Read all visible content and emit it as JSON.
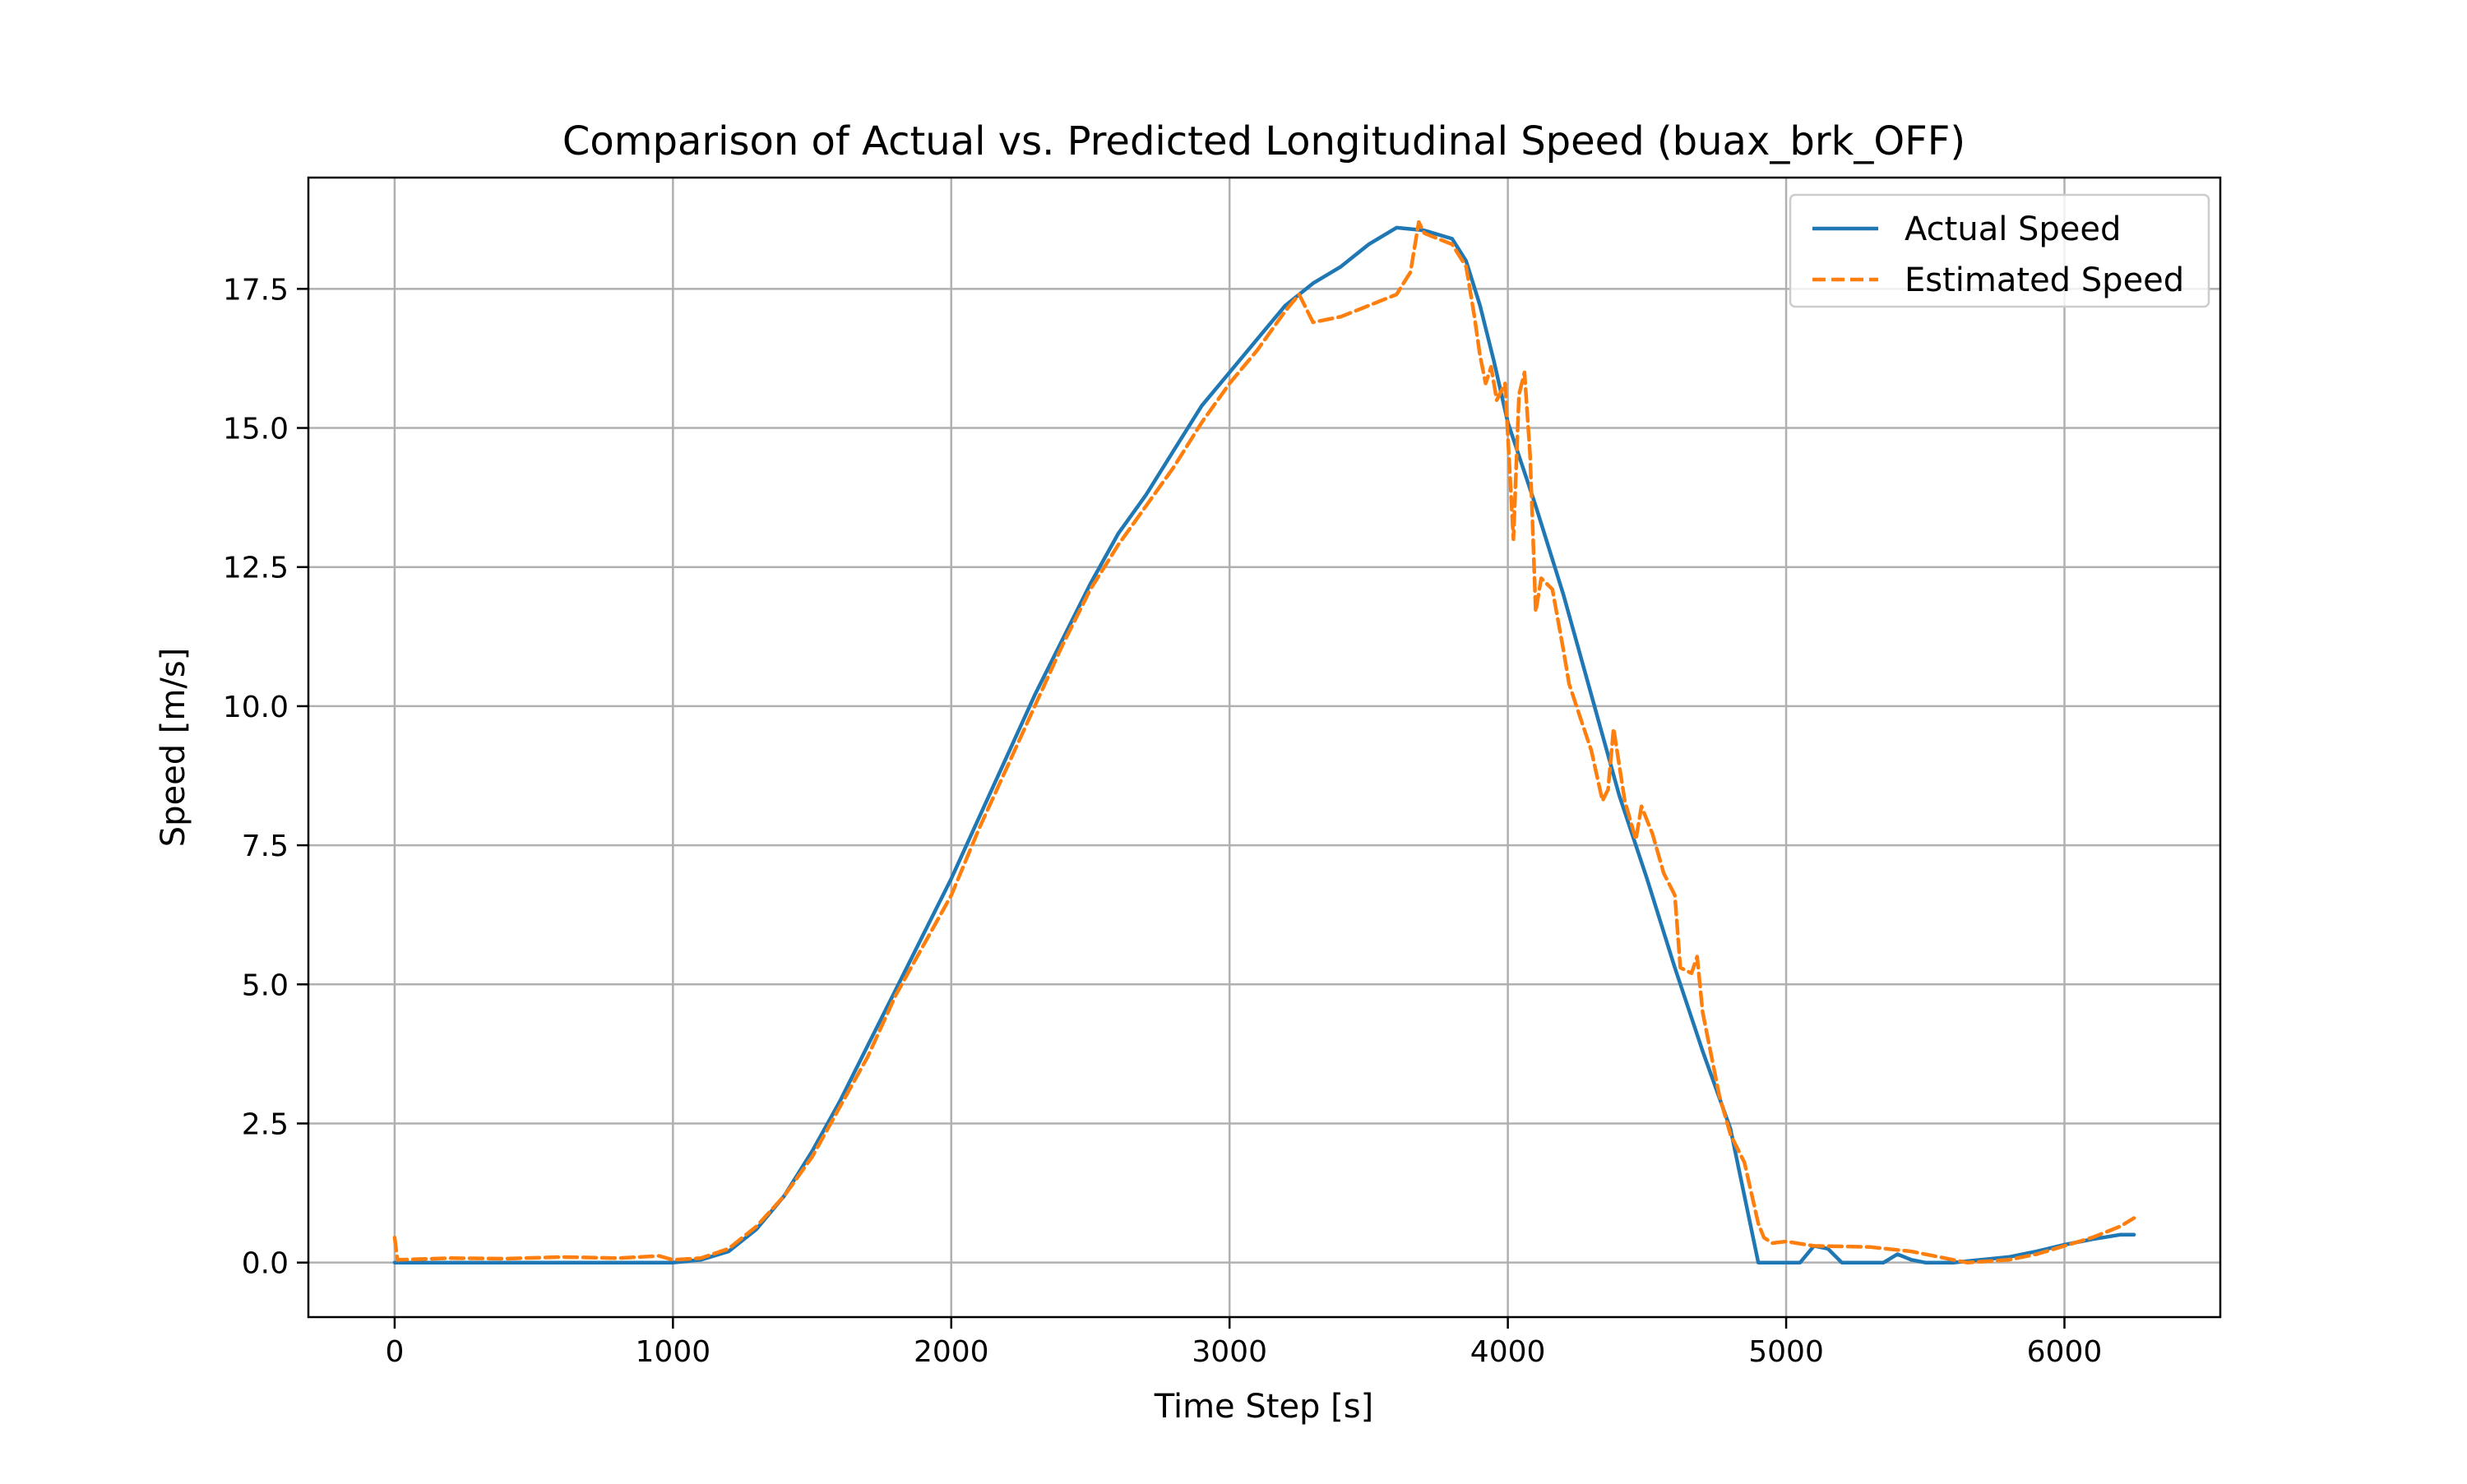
{
  "chart_data": {
    "type": "line",
    "title": "Comparison of Actual vs. Predicted Longitudinal Speed (buax_brk_OFF)",
    "xlabel": "Time Step [s]",
    "ylabel": "Speed [m/s]",
    "xlim": [
      -310,
      6560
    ],
    "ylim": [
      -0.98,
      19.5
    ],
    "xticks": [
      0,
      1000,
      2000,
      3000,
      4000,
      5000,
      6000
    ],
    "xtick_labels": [
      "0",
      "1000",
      "2000",
      "3000",
      "4000",
      "5000",
      "6000"
    ],
    "yticks": [
      0,
      2.5,
      5,
      7.5,
      10,
      12.5,
      15,
      17.5
    ],
    "ytick_labels": [
      "0.0",
      "2.5",
      "5.0",
      "7.5",
      "10.0",
      "12.5",
      "15.0",
      "17.5"
    ],
    "grid": true,
    "legend_position": "upper right",
    "series": [
      {
        "name": "Actual Speed",
        "color": "#1f77b4",
        "dash": "solid",
        "points": [
          [
            0,
            0
          ],
          [
            1000,
            0
          ],
          [
            1100,
            0.05
          ],
          [
            1200,
            0.2
          ],
          [
            1300,
            0.6
          ],
          [
            1400,
            1.2
          ],
          [
            1500,
            2.0
          ],
          [
            1600,
            2.9
          ],
          [
            1700,
            3.9
          ],
          [
            1800,
            4.9
          ],
          [
            1900,
            5.9
          ],
          [
            2000,
            6.9
          ],
          [
            2100,
            8.0
          ],
          [
            2200,
            9.1
          ],
          [
            2300,
            10.2
          ],
          [
            2400,
            11.2
          ],
          [
            2500,
            12.2
          ],
          [
            2600,
            13.1
          ],
          [
            2700,
            13.8
          ],
          [
            2800,
            14.6
          ],
          [
            2900,
            15.4
          ],
          [
            3000,
            16.0
          ],
          [
            3100,
            16.6
          ],
          [
            3200,
            17.2
          ],
          [
            3300,
            17.6
          ],
          [
            3400,
            17.9
          ],
          [
            3500,
            18.3
          ],
          [
            3600,
            18.6
          ],
          [
            3700,
            18.55
          ],
          [
            3800,
            18.4
          ],
          [
            3850,
            18.0
          ],
          [
            3900,
            17.2
          ],
          [
            3950,
            16.2
          ],
          [
            4000,
            15.1
          ],
          [
            4100,
            13.6
          ],
          [
            4200,
            12.0
          ],
          [
            4300,
            10.2
          ],
          [
            4400,
            8.4
          ],
          [
            4500,
            6.9
          ],
          [
            4600,
            5.3
          ],
          [
            4700,
            3.8
          ],
          [
            4800,
            2.4
          ],
          [
            4900,
            0
          ],
          [
            5050,
            0
          ],
          [
            5100,
            0.3
          ],
          [
            5150,
            0.25
          ],
          [
            5200,
            0
          ],
          [
            5350,
            0
          ],
          [
            5400,
            0.15
          ],
          [
            5450,
            0.05
          ],
          [
            5500,
            0
          ],
          [
            5600,
            0
          ],
          [
            5700,
            0.05
          ],
          [
            5800,
            0.1
          ],
          [
            5900,
            0.2
          ],
          [
            6000,
            0.32
          ],
          [
            6100,
            0.42
          ],
          [
            6200,
            0.5
          ],
          [
            6250,
            0.5
          ]
        ]
      },
      {
        "name": "Estimated Speed",
        "color": "#ff7f0e",
        "dash": "dashed",
        "points": [
          [
            0,
            0.45
          ],
          [
            10,
            0.05
          ],
          [
            200,
            0.08
          ],
          [
            400,
            0.07
          ],
          [
            600,
            0.1
          ],
          [
            800,
            0.08
          ],
          [
            950,
            0.12
          ],
          [
            1000,
            0.05
          ],
          [
            1100,
            0.08
          ],
          [
            1200,
            0.25
          ],
          [
            1300,
            0.65
          ],
          [
            1400,
            1.2
          ],
          [
            1500,
            1.9
          ],
          [
            1600,
            2.8
          ],
          [
            1700,
            3.7
          ],
          [
            1800,
            4.8
          ],
          [
            1900,
            5.7
          ],
          [
            2000,
            6.6
          ],
          [
            2100,
            7.8
          ],
          [
            2200,
            8.9
          ],
          [
            2300,
            10.0
          ],
          [
            2400,
            11.1
          ],
          [
            2500,
            12.1
          ],
          [
            2600,
            12.9
          ],
          [
            2700,
            13.6
          ],
          [
            2800,
            14.3
          ],
          [
            2900,
            15.1
          ],
          [
            3000,
            15.8
          ],
          [
            3100,
            16.4
          ],
          [
            3200,
            17.1
          ],
          [
            3250,
            17.4
          ],
          [
            3300,
            16.9
          ],
          [
            3400,
            17.0
          ],
          [
            3500,
            17.2
          ],
          [
            3600,
            17.4
          ],
          [
            3650,
            17.8
          ],
          [
            3680,
            18.7
          ],
          [
            3700,
            18.5
          ],
          [
            3800,
            18.3
          ],
          [
            3850,
            17.9
          ],
          [
            3880,
            17.0
          ],
          [
            3900,
            16.3
          ],
          [
            3920,
            15.8
          ],
          [
            3940,
            16.1
          ],
          [
            3960,
            15.5
          ],
          [
            3990,
            15.8
          ],
          [
            4020,
            13.0
          ],
          [
            4040,
            15.6
          ],
          [
            4060,
            16.0
          ],
          [
            4080,
            14.5
          ],
          [
            4100,
            11.7
          ],
          [
            4120,
            12.3
          ],
          [
            4160,
            12.1
          ],
          [
            4200,
            11.0
          ],
          [
            4220,
            10.4
          ],
          [
            4260,
            9.8
          ],
          [
            4300,
            9.2
          ],
          [
            4340,
            8.3
          ],
          [
            4360,
            8.5
          ],
          [
            4380,
            9.6
          ],
          [
            4420,
            8.3
          ],
          [
            4460,
            7.6
          ],
          [
            4480,
            8.2
          ],
          [
            4520,
            7.7
          ],
          [
            4560,
            7.0
          ],
          [
            4600,
            6.6
          ],
          [
            4620,
            5.3
          ],
          [
            4660,
            5.2
          ],
          [
            4680,
            5.5
          ],
          [
            4700,
            4.5
          ],
          [
            4760,
            3.0
          ],
          [
            4800,
            2.3
          ],
          [
            4850,
            1.8
          ],
          [
            4900,
            0.7
          ],
          [
            4920,
            0.45
          ],
          [
            4950,
            0.35
          ],
          [
            5000,
            0.38
          ],
          [
            5100,
            0.3
          ],
          [
            5300,
            0.28
          ],
          [
            5450,
            0.2
          ],
          [
            5550,
            0.1
          ],
          [
            5650,
            0
          ],
          [
            5800,
            0.05
          ],
          [
            5900,
            0.15
          ],
          [
            6000,
            0.3
          ],
          [
            6100,
            0.45
          ],
          [
            6200,
            0.65
          ],
          [
            6250,
            0.8
          ]
        ]
      }
    ]
  }
}
